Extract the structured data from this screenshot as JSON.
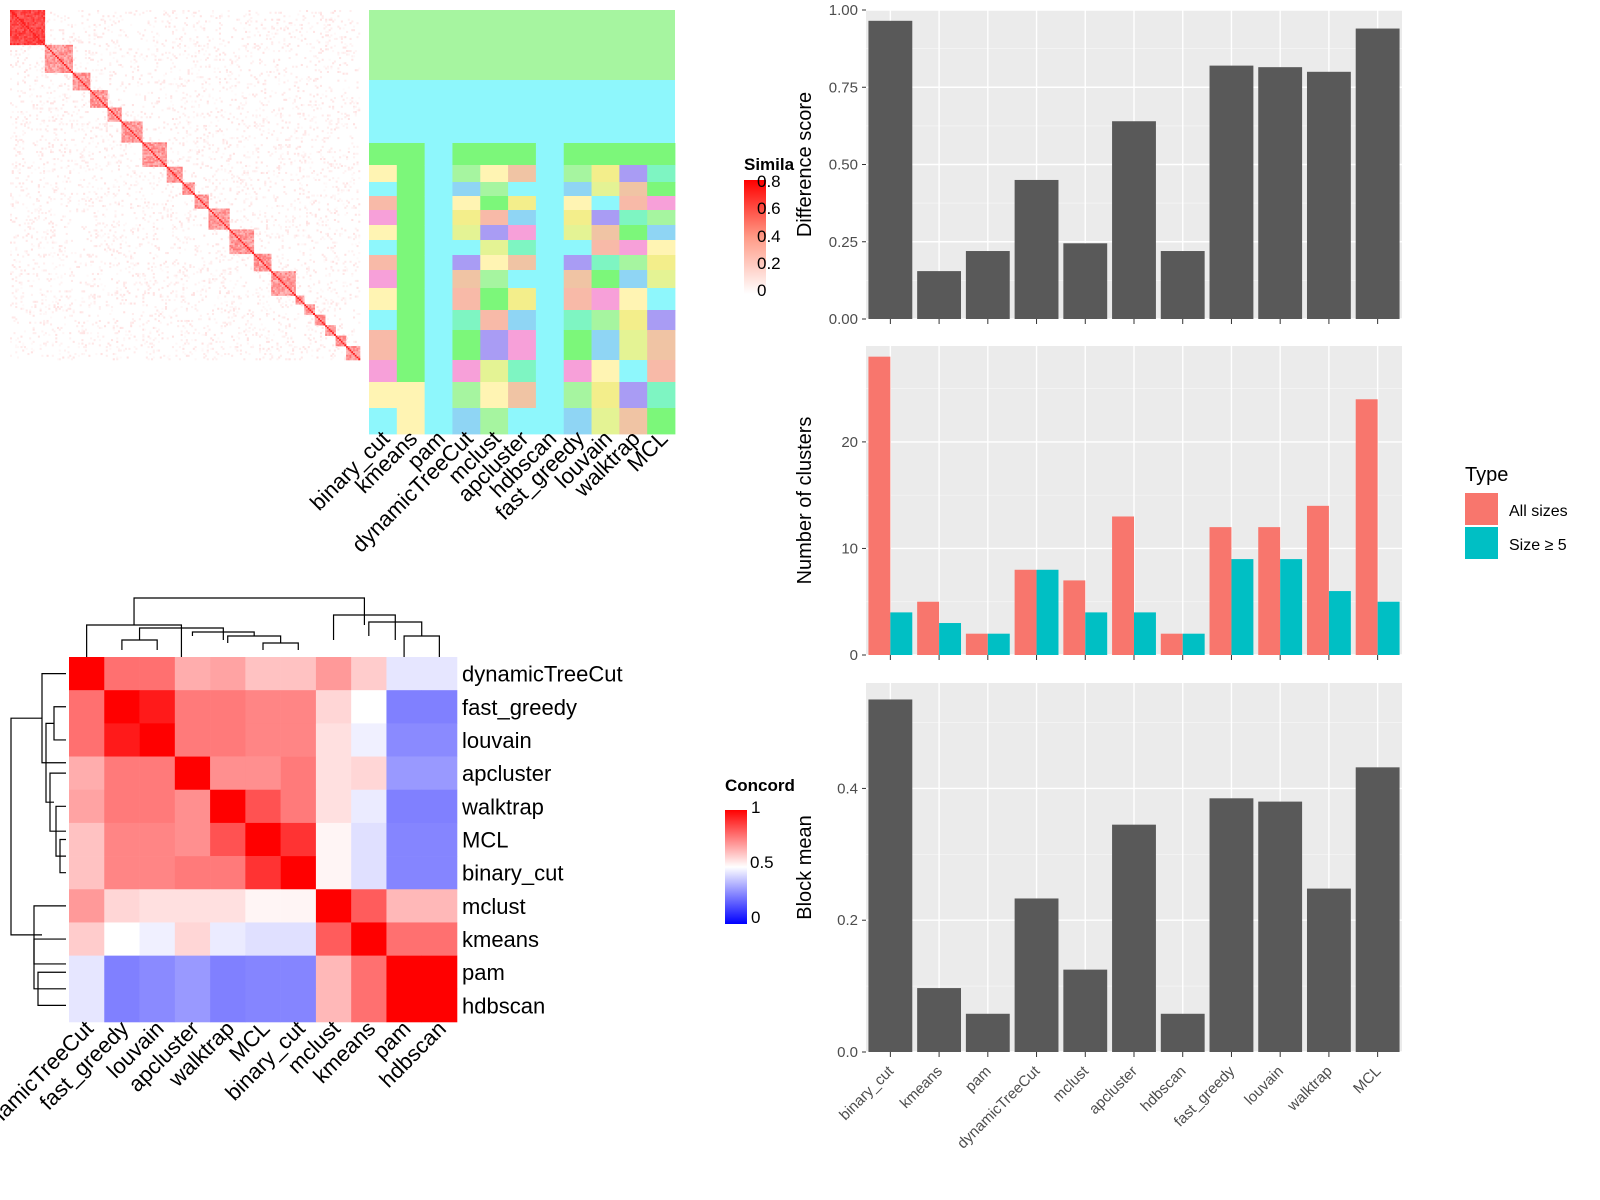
{
  "methods": [
    "binary_cut",
    "kmeans",
    "pam",
    "dynamicTreeCut",
    "mclust",
    "apcluster",
    "hdbscan",
    "fast_greedy",
    "louvain",
    "walktrap",
    "MCL"
  ],
  "similarity_panel": {
    "legend_title": "Simila",
    "legend_ticks": [
      "0.8",
      "0.6",
      "0.4",
      "0.2",
      "0"
    ],
    "colors": {
      "high": "#ff0000",
      "low": "#ffffff"
    },
    "blocks": [
      20,
      16,
      10,
      10,
      8,
      12,
      14,
      9,
      7,
      8,
      12,
      14,
      10,
      14,
      5,
      6,
      6,
      6,
      6,
      8
    ]
  },
  "concordance_panel": {
    "legend_title": "Concord",
    "legend_ticks": [
      "1",
      "0.5",
      "0"
    ],
    "colors": {
      "high": "#ff0000",
      "mid": "#ffffff",
      "low": "#0000ff"
    },
    "order": [
      "dynamicTreeCut",
      "fast_greedy",
      "louvain",
      "apcluster",
      "walktrap",
      "MCL",
      "binary_cut",
      "mclust",
      "kmeans",
      "pam",
      "hdbscan"
    ],
    "matrix": [
      [
        1.0,
        0.78,
        0.78,
        0.66,
        0.68,
        0.62,
        0.62,
        0.7,
        0.6,
        0.45,
        0.45
      ],
      [
        0.78,
        1.0,
        0.95,
        0.76,
        0.76,
        0.74,
        0.74,
        0.58,
        0.5,
        0.25,
        0.25
      ],
      [
        0.78,
        0.95,
        1.0,
        0.76,
        0.76,
        0.74,
        0.74,
        0.56,
        0.47,
        0.27,
        0.27
      ],
      [
        0.66,
        0.76,
        0.76,
        1.0,
        0.72,
        0.72,
        0.76,
        0.56,
        0.58,
        0.3,
        0.3
      ],
      [
        0.68,
        0.76,
        0.76,
        0.72,
        1.0,
        0.84,
        0.76,
        0.56,
        0.46,
        0.25,
        0.25
      ],
      [
        0.62,
        0.74,
        0.74,
        0.72,
        0.84,
        1.0,
        0.9,
        0.52,
        0.44,
        0.26,
        0.26
      ],
      [
        0.62,
        0.74,
        0.74,
        0.76,
        0.76,
        0.9,
        1.0,
        0.52,
        0.44,
        0.26,
        0.26
      ],
      [
        0.7,
        0.58,
        0.56,
        0.56,
        0.56,
        0.52,
        0.52,
        1.0,
        0.82,
        0.64,
        0.64
      ],
      [
        0.6,
        0.5,
        0.47,
        0.58,
        0.46,
        0.44,
        0.44,
        0.82,
        1.0,
        0.78,
        0.78
      ],
      [
        0.45,
        0.25,
        0.27,
        0.3,
        0.25,
        0.26,
        0.26,
        0.64,
        0.78,
        1.0,
        1.0
      ],
      [
        0.45,
        0.25,
        0.27,
        0.3,
        0.25,
        0.26,
        0.26,
        0.64,
        0.78,
        1.0,
        1.0
      ]
    ]
  },
  "chart_data": [
    {
      "type": "bar",
      "categories": [
        "binary_cut",
        "kmeans",
        "pam",
        "dynamicTreeCut",
        "mclust",
        "apcluster",
        "hdbscan",
        "fast_greedy",
        "louvain",
        "walktrap",
        "MCL"
      ],
      "values": [
        0.965,
        0.155,
        0.22,
        0.45,
        0.245,
        0.64,
        0.22,
        0.82,
        0.815,
        0.8,
        0.94
      ],
      "xlabel": "",
      "ylabel": "Difference score",
      "ylim": [
        0,
        1.0
      ],
      "yticks": [
        "0.00",
        "0.25",
        "0.50",
        "0.75",
        "1.00"
      ],
      "grid": true,
      "bar_color": "#595959"
    },
    {
      "type": "bar",
      "categories": [
        "binary_cut",
        "kmeans",
        "pam",
        "dynamicTreeCut",
        "mclust",
        "apcluster",
        "hdbscan",
        "fast_greedy",
        "louvain",
        "walktrap",
        "MCL"
      ],
      "series": [
        {
          "name": "All sizes",
          "color": "#f8766d",
          "values": [
            28,
            5,
            2,
            8,
            7,
            13,
            2,
            12,
            12,
            14,
            24
          ]
        },
        {
          "name": "Size ≥ 5",
          "color": "#00bfc4",
          "values": [
            4,
            3,
            2,
            8,
            4,
            4,
            2,
            9,
            9,
            6,
            5
          ]
        }
      ],
      "xlabel": "",
      "ylabel": "Number of clusters",
      "ylim": [
        0,
        29
      ],
      "yticks": [
        "0",
        "10",
        "20"
      ],
      "legend_title": "Type",
      "legend_position": "right",
      "grid": true
    },
    {
      "type": "bar",
      "categories": [
        "binary_cut",
        "kmeans",
        "pam",
        "dynamicTreeCut",
        "mclust",
        "apcluster",
        "hdbscan",
        "fast_greedy",
        "louvain",
        "walktrap",
        "MCL"
      ],
      "values": [
        0.535,
        0.097,
        0.058,
        0.233,
        0.125,
        0.345,
        0.058,
        0.385,
        0.38,
        0.248,
        0.432
      ],
      "xlabel": "",
      "ylabel": "Block mean",
      "ylim": [
        0,
        0.56
      ],
      "yticks": [
        "0.0",
        "0.2",
        "0.4"
      ],
      "grid": true,
      "bar_color": "#595959"
    }
  ]
}
